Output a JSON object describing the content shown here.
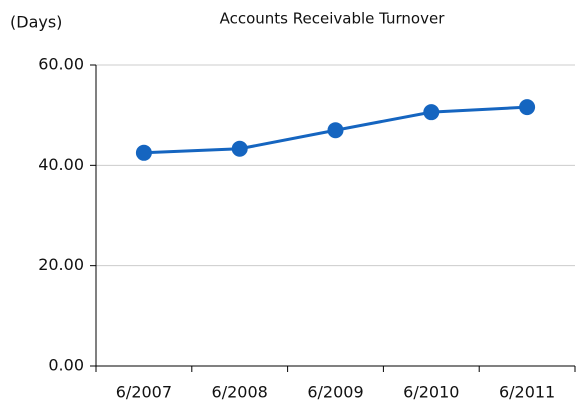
{
  "chart_data": {
    "type": "line",
    "title": "Accounts Receivable Turnover",
    "y_label": "(Days)",
    "categories": [
      "6/2007",
      "6/2008",
      "6/2009",
      "6/2010",
      "6/2011"
    ],
    "series": [
      {
        "name": "Accounts Receivable Turnover",
        "color": "#1565c0",
        "values": [
          42.5,
          43.3,
          47.0,
          50.6,
          51.6
        ]
      }
    ],
    "ylim": [
      0,
      60
    ],
    "yticks": [
      {
        "value": 0,
        "label": "0.00"
      },
      {
        "value": 20,
        "label": "20.00"
      },
      {
        "value": 40,
        "label": "40.00"
      },
      {
        "value": 60,
        "label": "60.00"
      }
    ],
    "grid": true
  }
}
